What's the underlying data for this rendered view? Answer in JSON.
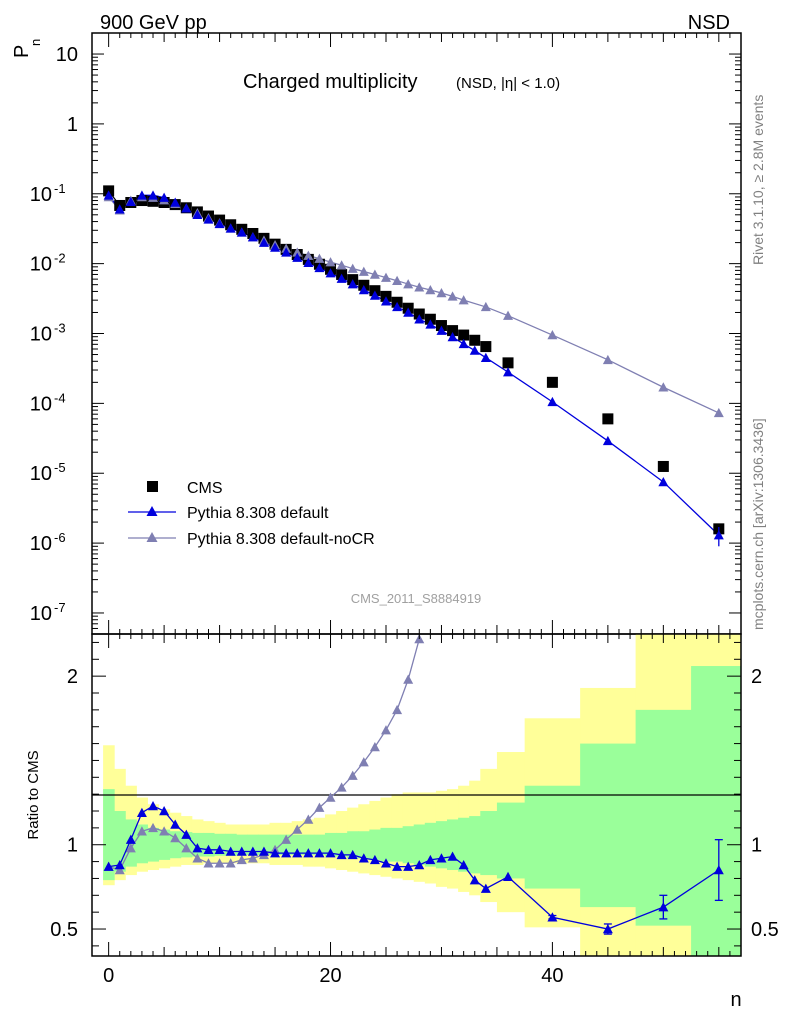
{
  "header": {
    "energy": "900 GeV pp",
    "process": "NSD"
  },
  "side": {
    "version": "Rivet 3.1.10, ≥ 2.8M events",
    "source": "mcplots.cern.ch [arXiv:1306.3436]"
  },
  "colors": {
    "cms": "#000000",
    "default": "#0000dd",
    "nocr": "#7f7fb2",
    "band_inner": "#9aff9a",
    "band_outer": "#ffff99"
  },
  "chart_data": [
    {
      "type": "line",
      "panel": "main",
      "title": "Charged multiplicity",
      "subtitle": "(NSD, |η| < 1.0)",
      "ylabel": "P_n",
      "yscale": "log",
      "ylim": [
        5e-08,
        20
      ],
      "xlim": [
        -1.5,
        57
      ],
      "analysis_id": "CMS_2011_S8884919",
      "legend_position": "bottom-left",
      "yticks": [
        {
          "base": "10",
          "exp": "-7",
          "value": 1e-07
        },
        {
          "base": "10",
          "exp": "-6",
          "value": 1e-06
        },
        {
          "base": "10",
          "exp": "-5",
          "value": 1e-05
        },
        {
          "base": "10",
          "exp": "-4",
          "value": 0.0001
        },
        {
          "base": "10",
          "exp": "-3",
          "value": 0.001
        },
        {
          "base": "10",
          "exp": "-2",
          "value": 0.01
        },
        {
          "base": "10",
          "exp": "-1",
          "value": 0.1
        },
        {
          "base": "1",
          "exp": "",
          "value": 1
        },
        {
          "base": "10",
          "exp": "",
          "value": 10
        }
      ],
      "series": [
        {
          "name": "CMS",
          "style": "square",
          "color": "#000000",
          "x": [
            0,
            1,
            2,
            3,
            4,
            5,
            6,
            7,
            8,
            9,
            10,
            11,
            12,
            13,
            14,
            15,
            16,
            17,
            18,
            19,
            20,
            21,
            22,
            23,
            24,
            25,
            26,
            27,
            28,
            29,
            30,
            31,
            32,
            33,
            34,
            36,
            40,
            45,
            50,
            55
          ],
          "y": [
            0.11,
            0.068,
            0.075,
            0.08,
            0.078,
            0.075,
            0.07,
            0.063,
            0.055,
            0.048,
            0.042,
            0.036,
            0.031,
            0.027,
            0.023,
            0.019,
            0.016,
            0.0135,
            0.0115,
            0.0098,
            0.0083,
            0.007,
            0.0059,
            0.0049,
            0.0041,
            0.0034,
            0.0028,
            0.0023,
            0.0019,
            0.0016,
            0.0013,
            0.0011,
            0.00095,
            0.0008,
            0.00065,
            0.00038,
            0.0002,
            6e-05,
            1.25e-05,
            1.6e-06
          ]
        },
        {
          "name": "Pythia 8.308 default",
          "style": "triangle",
          "color": "#0000dd",
          "x": [
            0,
            1,
            2,
            3,
            4,
            5,
            6,
            7,
            8,
            9,
            10,
            11,
            12,
            13,
            14,
            15,
            16,
            17,
            18,
            19,
            20,
            21,
            22,
            23,
            24,
            25,
            26,
            27,
            28,
            29,
            30,
            31,
            32,
            33,
            34,
            36,
            40,
            45,
            50,
            55
          ],
          "y": [
            0.095,
            0.06,
            0.077,
            0.095,
            0.095,
            0.088,
            0.075,
            0.062,
            0.05,
            0.043,
            0.037,
            0.032,
            0.028,
            0.024,
            0.02,
            0.017,
            0.0145,
            0.0122,
            0.0103,
            0.0087,
            0.0073,
            0.0061,
            0.0051,
            0.0042,
            0.0035,
            0.0029,
            0.0024,
            0.002,
            0.0016,
            0.00135,
            0.0011,
            0.00089,
            0.00071,
            0.00057,
            0.00045,
            0.00028,
            0.000105,
            2.9e-05,
            7.5e-06,
            1.3e-06
          ],
          "yerr_last": 4e-07
        },
        {
          "name": "Pythia 8.308 default-noCR",
          "style": "triangle",
          "color": "#7f7fb2",
          "x": [
            0,
            1,
            2,
            3,
            4,
            5,
            6,
            7,
            8,
            9,
            10,
            11,
            12,
            13,
            14,
            15,
            16,
            17,
            18,
            19,
            20,
            21,
            22,
            23,
            24,
            25,
            26,
            27,
            28,
            29,
            30,
            31,
            32,
            34,
            36,
            40,
            45,
            50,
            55
          ],
          "y": [
            0.09,
            0.058,
            0.08,
            0.09,
            0.088,
            0.081,
            0.072,
            0.062,
            0.053,
            0.045,
            0.038,
            0.032,
            0.028,
            0.024,
            0.0215,
            0.0185,
            0.0165,
            0.0145,
            0.013,
            0.0118,
            0.0105,
            0.0095,
            0.0085,
            0.0077,
            0.007,
            0.0063,
            0.0057,
            0.0051,
            0.0046,
            0.0042,
            0.0038,
            0.0034,
            0.003,
            0.0024,
            0.0018,
            0.00095,
            0.00042,
            0.00017,
            7.3e-05
          ]
        }
      ]
    },
    {
      "type": "line",
      "panel": "ratio",
      "ylabel": "Ratio to CMS",
      "xlabel": "n",
      "ylim": [
        0.34,
        2.25
      ],
      "xlim": [
        -1.5,
        57
      ],
      "yticks": [
        {
          "label": "0.5",
          "value": 0.5
        },
        {
          "label": "1",
          "value": 1
        },
        {
          "label": "2",
          "value": 2
        }
      ],
      "xticks": [
        {
          "label": "0",
          "value": 0
        },
        {
          "label": "20",
          "value": 20
        },
        {
          "label": "40",
          "value": 40
        }
      ],
      "bands": {
        "bins": [
          [
            -0.5,
            0.5
          ],
          [
            0.5,
            1.5
          ],
          [
            1.5,
            2.5
          ],
          [
            2.5,
            3.5
          ],
          [
            3.5,
            4.5
          ],
          [
            4.5,
            5.5
          ],
          [
            5.5,
            6.5
          ],
          [
            6.5,
            7.5
          ],
          [
            7.5,
            8.5
          ],
          [
            8.5,
            9.5
          ],
          [
            9.5,
            10.5
          ],
          [
            10.5,
            11.5
          ],
          [
            11.5,
            12.5
          ],
          [
            12.5,
            13.5
          ],
          [
            13.5,
            14.5
          ],
          [
            14.5,
            15.5
          ],
          [
            15.5,
            16.5
          ],
          [
            16.5,
            17.5
          ],
          [
            17.5,
            18.5
          ],
          [
            18.5,
            19.5
          ],
          [
            19.5,
            20.5
          ],
          [
            20.5,
            21.5
          ],
          [
            21.5,
            22.5
          ],
          [
            22.5,
            23.5
          ],
          [
            23.5,
            24.5
          ],
          [
            24.5,
            25.5
          ],
          [
            25.5,
            26.5
          ],
          [
            26.5,
            27.5
          ],
          [
            27.5,
            28.5
          ],
          [
            28.5,
            29.5
          ],
          [
            29.5,
            30.5
          ],
          [
            30.5,
            31.5
          ],
          [
            31.5,
            32.5
          ],
          [
            32.5,
            33.5
          ],
          [
            33.5,
            35
          ],
          [
            35,
            37.5
          ],
          [
            37.5,
            42.5
          ],
          [
            42.5,
            47.5
          ],
          [
            47.5,
            52.5
          ],
          [
            52.5,
            57
          ]
        ],
        "inner_lo": [
          0.79,
          0.84,
          0.87,
          0.89,
          0.9,
          0.91,
          0.92,
          0.925,
          0.93,
          0.93,
          0.935,
          0.935,
          0.94,
          0.94,
          0.94,
          0.94,
          0.94,
          0.94,
          0.94,
          0.94,
          0.93,
          0.93,
          0.92,
          0.92,
          0.91,
          0.9,
          0.9,
          0.89,
          0.88,
          0.87,
          0.86,
          0.85,
          0.84,
          0.83,
          0.82,
          0.8,
          0.74,
          0.63,
          0.52,
          0.34
        ],
        "inner_hi": [
          1.33,
          1.2,
          1.15,
          1.12,
          1.1,
          1.09,
          1.08,
          1.075,
          1.07,
          1.07,
          1.065,
          1.065,
          1.06,
          1.06,
          1.06,
          1.06,
          1.06,
          1.06,
          1.06,
          1.06,
          1.07,
          1.07,
          1.08,
          1.08,
          1.09,
          1.1,
          1.1,
          1.11,
          1.12,
          1.13,
          1.14,
          1.15,
          1.16,
          1.17,
          1.2,
          1.25,
          1.35,
          1.6,
          1.8,
          2.06
        ],
        "outer_lo": [
          0.76,
          0.79,
          0.82,
          0.84,
          0.85,
          0.86,
          0.87,
          0.88,
          0.88,
          0.89,
          0.89,
          0.89,
          0.89,
          0.89,
          0.89,
          0.88,
          0.88,
          0.88,
          0.87,
          0.87,
          0.86,
          0.85,
          0.84,
          0.83,
          0.82,
          0.81,
          0.8,
          0.79,
          0.78,
          0.77,
          0.75,
          0.74,
          0.72,
          0.7,
          0.66,
          0.6,
          0.51,
          0.34,
          0.34,
          0.34
        ],
        "outer_hi": [
          1.59,
          1.45,
          1.35,
          1.28,
          1.24,
          1.21,
          1.19,
          1.17,
          1.15,
          1.14,
          1.13,
          1.12,
          1.12,
          1.12,
          1.12,
          1.13,
          1.13,
          1.14,
          1.15,
          1.16,
          1.18,
          1.2,
          1.22,
          1.24,
          1.26,
          1.28,
          1.3,
          1.31,
          1.31,
          1.31,
          1.32,
          1.33,
          1.35,
          1.38,
          1.45,
          1.55,
          1.75,
          1.93,
          2.25,
          2.25
        ]
      },
      "series": [
        {
          "name": "Pythia 8.308 default",
          "color": "#0000dd",
          "x": [
            0,
            1,
            2,
            3,
            4,
            5,
            6,
            7,
            8,
            9,
            10,
            11,
            12,
            13,
            14,
            15,
            16,
            17,
            18,
            19,
            20,
            21,
            22,
            23,
            24,
            25,
            26,
            27,
            28,
            29,
            30,
            31,
            32,
            33,
            34,
            36,
            40,
            45,
            50,
            55
          ],
          "y": [
            0.87,
            0.88,
            1.03,
            1.19,
            1.23,
            1.2,
            1.12,
            1.06,
            0.98,
            0.97,
            0.97,
            0.96,
            0.96,
            0.96,
            0.96,
            0.95,
            0.95,
            0.95,
            0.95,
            0.95,
            0.95,
            0.94,
            0.94,
            0.92,
            0.91,
            0.89,
            0.87,
            0.87,
            0.88,
            0.91,
            0.92,
            0.93,
            0.88,
            0.79,
            0.74,
            0.81,
            0.57,
            0.5,
            0.63,
            0.85
          ],
          "yerr": [
            0,
            0,
            0,
            0,
            0,
            0,
            0,
            0,
            0,
            0,
            0,
            0,
            0,
            0,
            0,
            0,
            0,
            0,
            0,
            0,
            0,
            0,
            0,
            0,
            0,
            0,
            0,
            0,
            0,
            0,
            0,
            0,
            0,
            0,
            0,
            0,
            0.01,
            0.03,
            0.07,
            0.18
          ]
        },
        {
          "name": "Pythia 8.308 default-noCR",
          "color": "#7f7fb2",
          "x": [
            0,
            1,
            2,
            3,
            4,
            5,
            6,
            7,
            8,
            9,
            10,
            11,
            12,
            13,
            14,
            15,
            16,
            17,
            18,
            19,
            20,
            21,
            22,
            23,
            24,
            25,
            26,
            27,
            28
          ],
          "y": [
            0.87,
            0.85,
            0.98,
            1.08,
            1.1,
            1.08,
            1.04,
            0.98,
            0.92,
            0.89,
            0.89,
            0.89,
            0.91,
            0.92,
            0.94,
            0.97,
            1.03,
            1.09,
            1.15,
            1.22,
            1.28,
            1.34,
            1.41,
            1.49,
            1.58,
            1.68,
            1.8,
            1.98,
            2.22
          ]
        }
      ]
    }
  ]
}
